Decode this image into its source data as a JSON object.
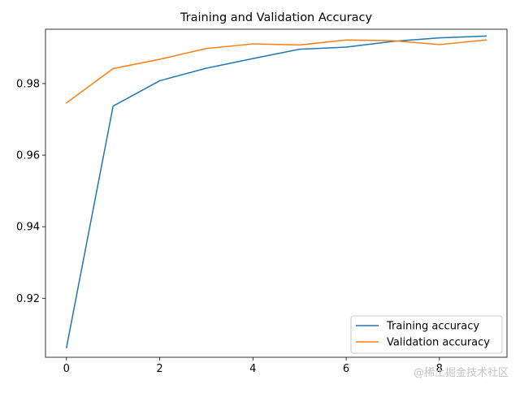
{
  "chart_data": {
    "type": "line",
    "title": "Training and Validation Accuracy",
    "xlabel": "",
    "ylabel": "",
    "x": [
      0,
      1,
      2,
      3,
      4,
      5,
      6,
      7,
      8,
      9
    ],
    "xlim": [
      -0.45,
      9.45
    ],
    "ylim": [
      0.9035,
      0.9952
    ],
    "x_ticks": [
      0,
      2,
      4,
      6,
      8
    ],
    "x_tick_labels": [
      "0",
      "2",
      "4",
      "6",
      "8"
    ],
    "y_ticks": [
      0.92,
      0.94,
      0.96,
      0.98
    ],
    "y_tick_labels": [
      "0.92",
      "0.94",
      "0.96",
      "0.98"
    ],
    "grid": false,
    "legend_position": "lower-right",
    "series": [
      {
        "name": "Training accuracy",
        "color": "#1f77b4",
        "values": [
          0.9062,
          0.9737,
          0.9808,
          0.9843,
          0.987,
          0.9896,
          0.9902,
          0.9918,
          0.9928,
          0.9933
        ]
      },
      {
        "name": "Validation accuracy",
        "color": "#ff7f0e",
        "values": [
          0.9746,
          0.9842,
          0.9868,
          0.9898,
          0.9911,
          0.9908,
          0.9922,
          0.992,
          0.9909,
          0.9922
        ]
      }
    ]
  },
  "watermark": "@稀土掘金技术社区"
}
